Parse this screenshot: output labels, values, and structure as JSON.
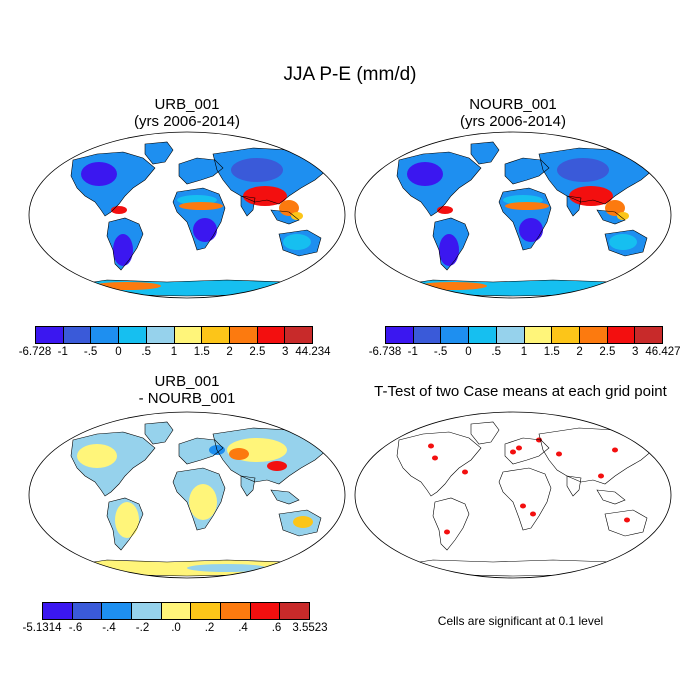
{
  "title": "JJA P-E (mm/d)",
  "panels": [
    {
      "id": "urb",
      "title_line1": "URB_001",
      "title_line2": "(yrs 2006-2014)",
      "colorbar": {
        "colors": [
          "#3b17f0",
          "#3a5ad9",
          "#1e8ff0",
          "#16bff0",
          "#96d2ec",
          "#fff57a",
          "#fcc519",
          "#fc7a0f",
          "#f30f0f",
          "#c82a2a"
        ],
        "labels": [
          "-6.728",
          "-1",
          "-.5",
          "0",
          ".5",
          "1",
          "1.5",
          "2",
          "2.5",
          "3",
          "44.234"
        ]
      }
    },
    {
      "id": "nourb",
      "title_line1": "NOURB_001",
      "title_line2": "(yrs 2006-2014)",
      "colorbar": {
        "colors": [
          "#3b17f0",
          "#3a5ad9",
          "#1e8ff0",
          "#16bff0",
          "#96d2ec",
          "#fff57a",
          "#fcc519",
          "#fc7a0f",
          "#f30f0f",
          "#c82a2a"
        ],
        "labels": [
          "-6.738",
          "-1",
          "-.5",
          "0",
          ".5",
          "1",
          "1.5",
          "2",
          "2.5",
          "3",
          "46.427"
        ]
      }
    },
    {
      "id": "diff",
      "title_line1": "URB_001",
      "title_line2": "- NOURB_001",
      "colorbar": {
        "colors": [
          "#3b17f0",
          "#3a5ad9",
          "#1e8ff0",
          "#96d2ec",
          "#fff57a",
          "#fcc519",
          "#fc7a0f",
          "#f30f0f",
          "#c82a2a"
        ],
        "labels": [
          "-5.1314",
          "-.6",
          "-.4",
          "-.2",
          ".0",
          ".2",
          ".4",
          ".6",
          "3.5523"
        ]
      }
    },
    {
      "id": "ttest",
      "title_line1": "T-Test of two Case means at each grid point",
      "note": "Cells are significant at 0.1 level"
    }
  ]
}
